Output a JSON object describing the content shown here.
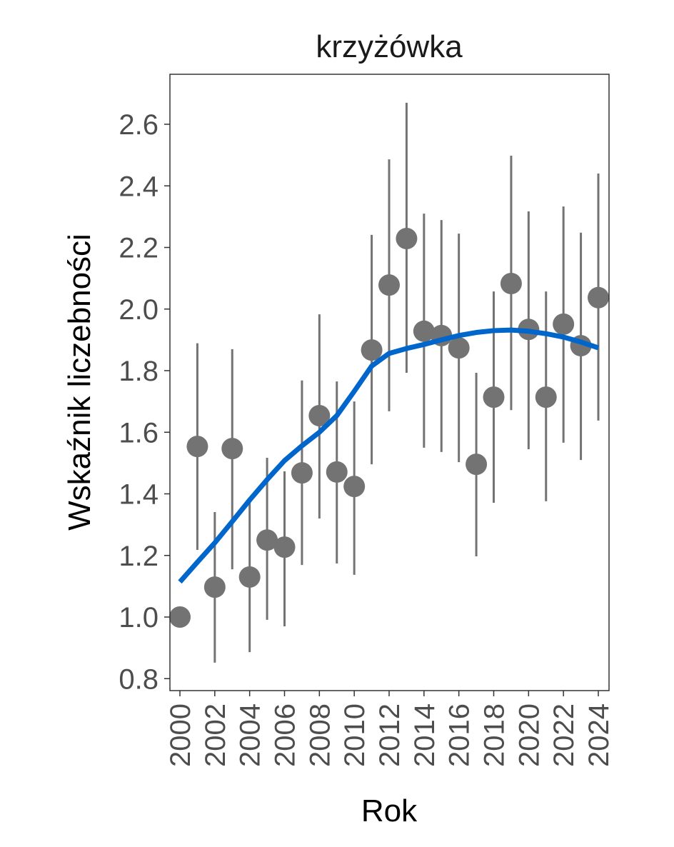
{
  "chart_data": {
    "type": "scatter",
    "title": "krzyżówka",
    "xlabel": "Rok",
    "ylabel": "Wskaźnik liczebności",
    "xlim": [
      1999.3,
      2024.6
    ],
    "ylim": [
      0.77,
      2.76
    ],
    "grid": false,
    "x_ticks": [
      "2000",
      "2002",
      "2004",
      "2006",
      "2008",
      "2010",
      "2012",
      "2014",
      "2016",
      "2018",
      "2020",
      "2022",
      "2024"
    ],
    "y_ticks": [
      "0.8",
      "1.0",
      "1.2",
      "1.4",
      "1.6",
      "1.8",
      "2.0",
      "2.2",
      "2.4",
      "2.6"
    ],
    "colors": {
      "points": "#737373",
      "trend": "#0066cc",
      "axis": "#333333",
      "ticklabel": "#4d4d4d"
    },
    "points": [
      {
        "x": 2000,
        "y": 1.0,
        "lo": null,
        "hi": null
      },
      {
        "x": 2001,
        "y": 1.554,
        "lo": 1.218,
        "hi": 1.889
      },
      {
        "x": 2002,
        "y": 1.097,
        "lo": 0.852,
        "hi": 1.341
      },
      {
        "x": 2003,
        "y": 1.547,
        "lo": 1.155,
        "hi": 1.87
      },
      {
        "x": 2004,
        "y": 1.13,
        "lo": 0.886,
        "hi": 1.373
      },
      {
        "x": 2005,
        "y": 1.25,
        "lo": 0.991,
        "hi": 1.517
      },
      {
        "x": 2006,
        "y": 1.227,
        "lo": 0.97,
        "hi": 1.473
      },
      {
        "x": 2007,
        "y": 1.468,
        "lo": 1.169,
        "hi": 1.768
      },
      {
        "x": 2008,
        "y": 1.654,
        "lo": 1.32,
        "hi": 1.983
      },
      {
        "x": 2009,
        "y": 1.471,
        "lo": 1.174,
        "hi": 1.765
      },
      {
        "x": 2010,
        "y": 1.424,
        "lo": 1.137,
        "hi": 1.7
      },
      {
        "x": 2011,
        "y": 1.867,
        "lo": 1.496,
        "hi": 2.241
      },
      {
        "x": 2012,
        "y": 2.078,
        "lo": 1.668,
        "hi": 2.486
      },
      {
        "x": 2013,
        "y": 2.229,
        "lo": 1.793,
        "hi": 2.67
      },
      {
        "x": 2014,
        "y": 1.928,
        "lo": 1.55,
        "hi": 2.31
      },
      {
        "x": 2015,
        "y": 1.914,
        "lo": 1.536,
        "hi": 2.289
      },
      {
        "x": 2016,
        "y": 1.874,
        "lo": 1.503,
        "hi": 2.245
      },
      {
        "x": 2017,
        "y": 1.496,
        "lo": 1.197,
        "hi": 1.793
      },
      {
        "x": 2018,
        "y": 1.714,
        "lo": 1.371,
        "hi": 2.057
      },
      {
        "x": 2019,
        "y": 2.083,
        "lo": 1.672,
        "hi": 2.498
      },
      {
        "x": 2020,
        "y": 1.934,
        "lo": 1.545,
        "hi": 2.317
      },
      {
        "x": 2021,
        "y": 1.714,
        "lo": 1.376,
        "hi": 2.057
      },
      {
        "x": 2022,
        "y": 1.951,
        "lo": 1.566,
        "hi": 2.333
      },
      {
        "x": 2023,
        "y": 1.881,
        "lo": 1.51,
        "hi": 2.248
      },
      {
        "x": 2024,
        "y": 2.037,
        "lo": 1.638,
        "hi": 2.44
      }
    ],
    "trend": [
      [
        2000,
        1.114
      ],
      [
        2001,
        1.178
      ],
      [
        2002,
        1.241
      ],
      [
        2003,
        1.31
      ],
      [
        2004,
        1.38
      ],
      [
        2005,
        1.446
      ],
      [
        2006,
        1.508
      ],
      [
        2007,
        1.556
      ],
      [
        2008,
        1.6
      ],
      [
        2009,
        1.654
      ],
      [
        2010,
        1.733
      ],
      [
        2011,
        1.815
      ],
      [
        2012,
        1.856
      ],
      [
        2013,
        1.872
      ],
      [
        2014,
        1.885
      ],
      [
        2015,
        1.9
      ],
      [
        2016,
        1.914
      ],
      [
        2017,
        1.924
      ],
      [
        2018,
        1.93
      ],
      [
        2019,
        1.932
      ],
      [
        2020,
        1.928
      ],
      [
        2021,
        1.92
      ],
      [
        2022,
        1.909
      ],
      [
        2023,
        1.893
      ],
      [
        2024,
        1.874
      ]
    ]
  }
}
